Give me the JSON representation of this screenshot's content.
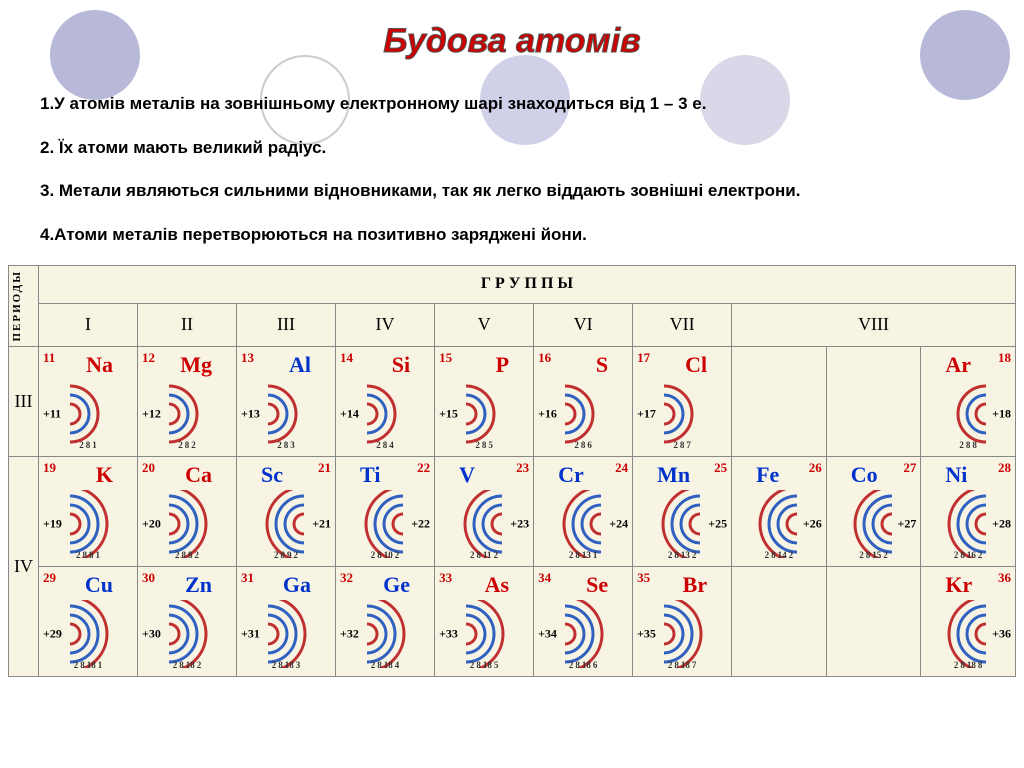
{
  "title": "Будова атомів",
  "points": [
    "1.У атомів металів на зовнішньому електронному шарі знаходиться від 1 – 3 е.",
    "2. Їх атоми мають великий радіус.",
    "3. Метали являються сильними відновниками, так як легко віддають зовнішні електрони.",
    "4.Атоми металів перетворюються на позитивно заряджені йони."
  ],
  "table": {
    "periods_label": "ПЕРИОДЫ",
    "groups_label": "Г  Р  У  П  П  Ы",
    "group_nums": [
      "I",
      "II",
      "III",
      "IV",
      "V",
      "VI",
      "VII",
      "VIII"
    ],
    "periods": [
      "III",
      "IV"
    ],
    "colors": {
      "metal": "#cc0000",
      "nonmetal": "#0033cc",
      "arc_outer": "#c03030",
      "arc_inner": "#3060c0"
    }
  },
  "elements": {
    "r3": [
      {
        "n": "11",
        "sym": "Na",
        "cls": "metal",
        "charge": "+11",
        "sh": [
          2,
          8,
          1
        ],
        "side": "L"
      },
      {
        "n": "12",
        "sym": "Mg",
        "cls": "metal",
        "charge": "+12",
        "sh": [
          2,
          8,
          2
        ],
        "side": "L"
      },
      {
        "n": "13",
        "sym": "Al",
        "cls": "nonmetal",
        "charge": "+13",
        "sh": [
          2,
          8,
          3
        ],
        "side": "L"
      },
      {
        "n": "14",
        "sym": "Si",
        "cls": "metal",
        "charge": "+14",
        "sh": [
          2,
          8,
          4
        ],
        "side": "L"
      },
      {
        "n": "15",
        "sym": "P",
        "cls": "metal",
        "charge": "+15",
        "sh": [
          2,
          8,
          5
        ],
        "side": "L"
      },
      {
        "n": "16",
        "sym": "S",
        "cls": "metal",
        "charge": "+16",
        "sh": [
          2,
          8,
          6
        ],
        "side": "L"
      },
      {
        "n": "17",
        "sym": "Cl",
        "cls": "metal",
        "charge": "+17",
        "sh": [
          2,
          8,
          7
        ],
        "side": "L"
      },
      null,
      null,
      {
        "n": "18",
        "sym": "Ar",
        "cls": "metal",
        "charge": "+18",
        "sh": [
          2,
          8,
          8
        ],
        "side": "R"
      }
    ],
    "r4a": [
      {
        "n": "19",
        "sym": "K",
        "cls": "metal",
        "charge": "+19",
        "sh": [
          2,
          8,
          8,
          1
        ],
        "side": "L"
      },
      {
        "n": "20",
        "sym": "Ca",
        "cls": "metal",
        "charge": "+20",
        "sh": [
          2,
          8,
          8,
          2
        ],
        "side": "L"
      },
      {
        "n": "21",
        "sym": "Sc",
        "cls": "nonmetal",
        "charge": "+21",
        "sh": [
          2,
          8,
          9,
          2
        ],
        "side": "R"
      },
      {
        "n": "22",
        "sym": "Ti",
        "cls": "nonmetal",
        "charge": "+22",
        "sh": [
          2,
          8,
          10,
          2
        ],
        "side": "R"
      },
      {
        "n": "23",
        "sym": "V",
        "cls": "nonmetal",
        "charge": "+23",
        "sh": [
          2,
          8,
          11,
          2
        ],
        "side": "R"
      },
      {
        "n": "24",
        "sym": "Cr",
        "cls": "nonmetal",
        "charge": "+24",
        "sh": [
          2,
          8,
          13,
          1
        ],
        "side": "R"
      },
      {
        "n": "25",
        "sym": "Mn",
        "cls": "nonmetal",
        "charge": "+25",
        "sh": [
          2,
          8,
          13,
          2
        ],
        "side": "R"
      },
      {
        "n": "26",
        "sym": "Fe",
        "cls": "nonmetal",
        "charge": "+26",
        "sh": [
          2,
          8,
          14,
          2
        ],
        "side": "R"
      },
      {
        "n": "27",
        "sym": "Co",
        "cls": "nonmetal",
        "charge": "+27",
        "sh": [
          2,
          8,
          15,
          2
        ],
        "side": "R"
      },
      {
        "n": "28",
        "sym": "Ni",
        "cls": "nonmetal",
        "charge": "+28",
        "sh": [
          2,
          8,
          16,
          2
        ],
        "side": "R"
      }
    ],
    "r4b": [
      {
        "n": "29",
        "sym": "Cu",
        "cls": "nonmetal",
        "charge": "+29",
        "sh": [
          2,
          8,
          18,
          1
        ],
        "side": "L"
      },
      {
        "n": "30",
        "sym": "Zn",
        "cls": "nonmetal",
        "charge": "+30",
        "sh": [
          2,
          8,
          18,
          2
        ],
        "side": "L"
      },
      {
        "n": "31",
        "sym": "Ga",
        "cls": "nonmetal",
        "charge": "+31",
        "sh": [
          2,
          8,
          18,
          3
        ],
        "side": "L"
      },
      {
        "n": "32",
        "sym": "Ge",
        "cls": "nonmetal",
        "charge": "+32",
        "sh": [
          2,
          8,
          18,
          4
        ],
        "side": "L"
      },
      {
        "n": "33",
        "sym": "As",
        "cls": "metal",
        "charge": "+33",
        "sh": [
          2,
          8,
          18,
          5
        ],
        "side": "L"
      },
      {
        "n": "34",
        "sym": "Se",
        "cls": "metal",
        "charge": "+34",
        "sh": [
          2,
          8,
          18,
          6
        ],
        "side": "L"
      },
      {
        "n": "35",
        "sym": "Br",
        "cls": "metal",
        "charge": "+35",
        "sh": [
          2,
          8,
          18,
          7
        ],
        "side": "L"
      },
      null,
      null,
      {
        "n": "36",
        "sym": "Kr",
        "cls": "metal",
        "charge": "+36",
        "sh": [
          2,
          8,
          18,
          8
        ],
        "side": "R"
      }
    ]
  }
}
